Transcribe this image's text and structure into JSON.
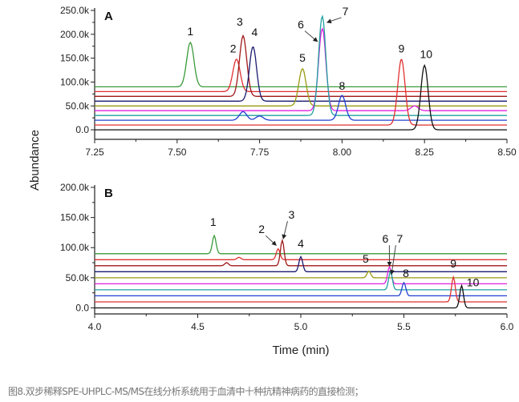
{
  "chart_data": [
    {
      "type": "line",
      "panel_label": "A",
      "xlabel": "",
      "ylabel": "Abundance",
      "xlim": [
        7.25,
        8.5
      ],
      "ylim": [
        -20000,
        250000
      ],
      "x_ticks": [
        "7.25",
        "7.50",
        "7.75",
        "8.00",
        "8.25",
        "8.50"
      ],
      "x_tick_values": [
        7.25,
        7.5,
        7.75,
        8.0,
        8.25,
        8.5
      ],
      "y_ticks": [
        "0.0",
        "50.0k",
        "100.0k",
        "150.0k",
        "200.0k",
        "250.0k"
      ],
      "y_tick_values": [
        0,
        50000,
        100000,
        150000,
        200000,
        250000
      ],
      "grid": false,
      "series": [
        {
          "color": "#3a9a3a",
          "offset": 90000,
          "peaks": [
            [
              7.54,
              93000
            ]
          ]
        },
        {
          "color": "#e03030",
          "offset": 80000,
          "peaks": [
            [
              7.68,
              68000
            ]
          ]
        },
        {
          "color": "#a01818",
          "offset": 70000,
          "peaks": [
            [
              7.7,
              127000
            ]
          ]
        },
        {
          "color": "#1a1a70",
          "offset": 60000,
          "peaks": [
            [
              7.73,
              114000
            ]
          ]
        },
        {
          "color": "#9a9a10",
          "offset": 50000,
          "peaks": [
            [
              7.88,
              78000
            ]
          ]
        },
        {
          "color": "#e020e0",
          "offset": 40000,
          "peaks": [
            [
              7.94,
              172000
            ],
            [
              8.22,
              10000
            ]
          ]
        },
        {
          "color": "#20a0a0",
          "offset": 30000,
          "peaks": [
            [
              7.94,
              208000
            ]
          ]
        },
        {
          "color": "#2040d0",
          "offset": 20000,
          "peaks": [
            [
              7.7,
              18000
            ],
            [
              7.75,
              9000
            ],
            [
              8.0,
              52000
            ]
          ]
        },
        {
          "color": "#e03030",
          "offset": 10000,
          "peaks": [
            [
              8.18,
              138000
            ]
          ]
        },
        {
          "color": "#111111",
          "offset": 0,
          "peaks": [
            [
              8.25,
              135000
            ]
          ]
        }
      ],
      "annotations": [
        {
          "text": "1",
          "x": 7.54,
          "y": 198000
        },
        {
          "text": "2",
          "x": 7.67,
          "y": 162000
        },
        {
          "text": "3",
          "x": 7.69,
          "y": 218000
        },
        {
          "text": "4",
          "x": 7.735,
          "y": 196000
        },
        {
          "text": "5",
          "x": 7.88,
          "y": 143000
        },
        {
          "text": "6",
          "x": 7.875,
          "y": 212000,
          "arrow_to": [
            7.925,
            185000
          ]
        },
        {
          "text": "7",
          "x": 8.01,
          "y": 240000,
          "arrow_to": [
            7.955,
            225000
          ]
        },
        {
          "text": "8",
          "x": 8.0,
          "y": 84000
        },
        {
          "text": "9",
          "x": 8.18,
          "y": 162000
        },
        {
          "text": "10",
          "x": 8.255,
          "y": 150000
        }
      ]
    },
    {
      "type": "line",
      "panel_label": "B",
      "xlabel": "Time (min)",
      "ylabel": "",
      "xlim": [
        4.0,
        6.0
      ],
      "ylim": [
        -10000,
        200000
      ],
      "x_ticks": [
        "4.0",
        "4.5",
        "5.0",
        "5.5",
        "6.0"
      ],
      "x_tick_values": [
        4.0,
        4.5,
        5.0,
        5.5,
        6.0
      ],
      "y_ticks": [
        "0.0",
        "50.0k",
        "100.0k",
        "150.0k",
        "200.0k"
      ],
      "y_tick_values": [
        0,
        50000,
        100000,
        150000,
        200000
      ],
      "grid": false,
      "series": [
        {
          "color": "#3a9a3a",
          "offset": 90000,
          "peaks": [
            [
              4.58,
              30000
            ]
          ]
        },
        {
          "color": "#e03030",
          "offset": 80000,
          "peaks": [
            [
              4.7,
              4000
            ],
            [
              4.89,
              18000
            ]
          ]
        },
        {
          "color": "#a01818",
          "offset": 70000,
          "peaks": [
            [
              4.64,
              5000
            ],
            [
              4.91,
              42000
            ]
          ]
        },
        {
          "color": "#1a1a70",
          "offset": 60000,
          "peaks": [
            [
              5.0,
              25000
            ]
          ]
        },
        {
          "color": "#9a9a10",
          "offset": 50000,
          "peaks": [
            [
              5.33,
              11000
            ]
          ]
        },
        {
          "color": "#e020e0",
          "offset": 40000,
          "peaks": [
            [
              5.43,
              28000
            ]
          ]
        },
        {
          "color": "#20a0a0",
          "offset": 30000,
          "peaks": [
            [
              5.435,
              30000
            ]
          ]
        },
        {
          "color": "#2040d0",
          "offset": 20000,
          "peaks": [
            [
              5.5,
              22000
            ]
          ]
        },
        {
          "color": "#e03030",
          "offset": 10000,
          "peaks": [
            [
              5.74,
              41000
            ]
          ]
        },
        {
          "color": "#111111",
          "offset": 0,
          "peaks": [
            [
              5.78,
              37000
            ]
          ]
        }
      ],
      "annotations": [
        {
          "text": "1",
          "x": 4.575,
          "y": 136000
        },
        {
          "text": "2",
          "x": 4.81,
          "y": 124000,
          "arrow_to": [
            4.88,
            104000
          ]
        },
        {
          "text": "3",
          "x": 4.955,
          "y": 148000,
          "arrow_to": [
            4.915,
            115000
          ]
        },
        {
          "text": "4",
          "x": 5.0,
          "y": 100000
        },
        {
          "text": "5",
          "x": 5.315,
          "y": 75000
        },
        {
          "text": "6",
          "x": 5.41,
          "y": 108000,
          "arrow_to": [
            5.43,
            70000
          ]
        },
        {
          "text": "7",
          "x": 5.48,
          "y": 108000,
          "arrow_to": [
            5.44,
            56000
          ]
        },
        {
          "text": "8",
          "x": 5.51,
          "y": 51000
        },
        {
          "text": "9",
          "x": 5.74,
          "y": 67000
        },
        {
          "text": "10",
          "x": 5.835,
          "y": 36000
        }
      ]
    }
  ],
  "caption": "图8.双步稀释SPE-UHPLC-MS/MS在线分析系统用于血清中十种抗精神病药的直接检测；"
}
